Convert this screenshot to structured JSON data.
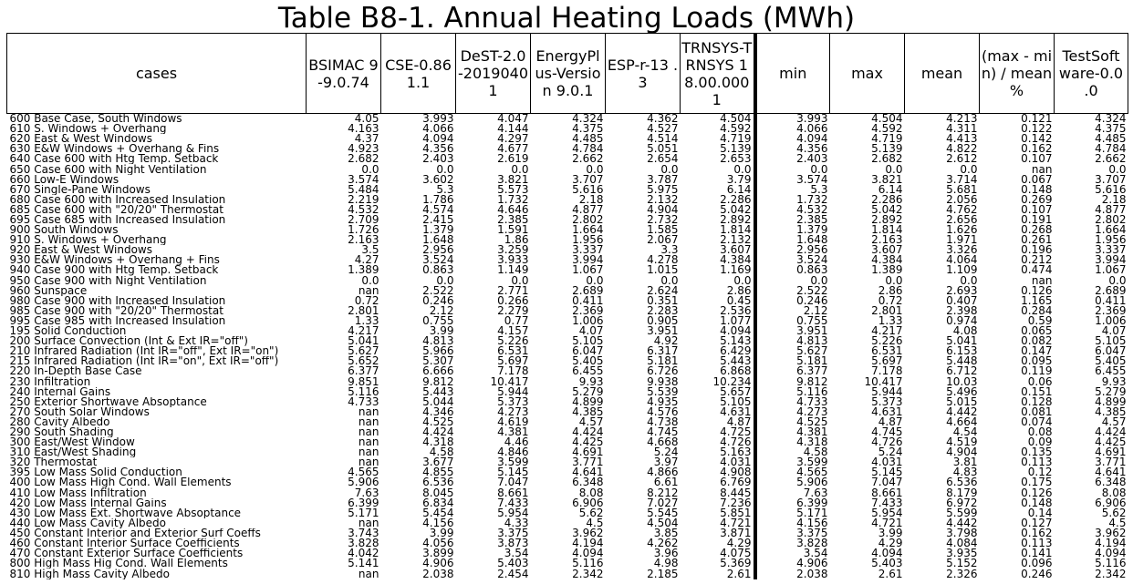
{
  "title": "Table B8-1. Annual Heating Loads (MWh)",
  "columns": [
    {
      "key": "cases",
      "label": "cases"
    },
    {
      "key": "bsimac",
      "label": "BSIMAC 9-9.0.74"
    },
    {
      "key": "cse",
      "label": "CSE-0.86 1.1"
    },
    {
      "key": "dest",
      "label": "DeST-2.0 -2019040 1"
    },
    {
      "key": "energyplus",
      "label": "EnergyPl us-Version 9.0.1"
    },
    {
      "key": "espr",
      "label": "ESP-r-13 .3"
    },
    {
      "key": "trnsys",
      "label": "TRNSYS-TRNSYS 1 8.00.000 1"
    },
    {
      "key": "min",
      "label": "min"
    },
    {
      "key": "max",
      "label": "max"
    },
    {
      "key": "mean",
      "label": "mean"
    },
    {
      "key": "range_pct",
      "label": "(max - min) / mean %"
    },
    {
      "key": "testsoft",
      "label": "TestSoft ware-0.0 .0"
    }
  ],
  "rows": [
    [
      "600 Base Case, South Windows",
      "4.05",
      "3.993",
      "4.047",
      "4.324",
      "4.362",
      "4.504",
      "3.993",
      "4.504",
      "4.213",
      "0.121",
      "4.324"
    ],
    [
      "610 S. Windows + Overhang",
      "4.163",
      "4.066",
      "4.144",
      "4.375",
      "4.527",
      "4.592",
      "4.066",
      "4.592",
      "4.311",
      "0.122",
      "4.375"
    ],
    [
      "620 East & West Windows",
      "4.37",
      "4.094",
      "4.297",
      "4.485",
      "4.514",
      "4.719",
      "4.094",
      "4.719",
      "4.413",
      "0.142",
      "4.485"
    ],
    [
      "630 E&W Windows + Overhang & Fins",
      "4.923",
      "4.356",
      "4.677",
      "4.784",
      "5.051",
      "5.139",
      "4.356",
      "5.139",
      "4.822",
      "0.162",
      "4.784"
    ],
    [
      "640 Case 600 with Htg Temp. Setback",
      "2.682",
      "2.403",
      "2.619",
      "2.662",
      "2.654",
      "2.653",
      "2.403",
      "2.682",
      "2.612",
      "0.107",
      "2.662"
    ],
    [
      "650 Case 600 with Night Ventilation",
      "0.0",
      "0.0",
      "0.0",
      "0.0",
      "0.0",
      "0.0",
      "0.0",
      "0.0",
      "0.0",
      "nan",
      "0.0"
    ],
    [
      "660 Low-E Windows",
      "3.574",
      "3.602",
      "3.821",
      "3.707",
      "3.787",
      "3.79",
      "3.574",
      "3.821",
      "3.714",
      "0.067",
      "3.707"
    ],
    [
      "670 Single-Pane Windows",
      "5.484",
      "5.3",
      "5.573",
      "5.616",
      "5.975",
      "6.14",
      "5.3",
      "6.14",
      "5.681",
      "0.148",
      "5.616"
    ],
    [
      "680 Case 600 with Increased Insulation",
      "2.219",
      "1.786",
      "1.732",
      "2.18",
      "2.132",
      "2.286",
      "1.732",
      "2.286",
      "2.056",
      "0.269",
      "2.18"
    ],
    [
      "685 Case 600 with \"20/20\" Thermostat",
      "4.532",
      "4.574",
      "4.646",
      "4.877",
      "4.904",
      "5.042",
      "4.532",
      "5.042",
      "4.762",
      "0.107",
      "4.877"
    ],
    [
      "695 Case 685 with Increased Insulation",
      "2.709",
      "2.415",
      "2.385",
      "2.802",
      "2.732",
      "2.892",
      "2.385",
      "2.892",
      "2.656",
      "0.191",
      "2.802"
    ],
    [
      "900 South Windows",
      "1.726",
      "1.379",
      "1.591",
      "1.664",
      "1.585",
      "1.814",
      "1.379",
      "1.814",
      "1.626",
      "0.268",
      "1.664"
    ],
    [
      "910 S. Windows + Overhang",
      "2.163",
      "1.648",
      "1.86",
      "1.956",
      "2.067",
      "2.132",
      "1.648",
      "2.163",
      "1.971",
      "0.261",
      "1.956"
    ],
    [
      "920 East & West Windows",
      "3.5",
      "2.956",
      "3.259",
      "3.337",
      "3.3",
      "3.607",
      "2.956",
      "3.607",
      "3.326",
      "0.196",
      "3.337"
    ],
    [
      "930 E&W Windows + Overhang + Fins",
      "4.27",
      "3.524",
      "3.933",
      "3.994",
      "4.278",
      "4.384",
      "3.524",
      "4.384",
      "4.064",
      "0.212",
      "3.994"
    ],
    [
      "940 Case 900 with Htg Temp. Setback",
      "1.389",
      "0.863",
      "1.149",
      "1.067",
      "1.015",
      "1.169",
      "0.863",
      "1.389",
      "1.109",
      "0.474",
      "1.067"
    ],
    [
      "950 Case 900 with Night Ventilation",
      "0.0",
      "0.0",
      "0.0",
      "0.0",
      "0.0",
      "0.0",
      "0.0",
      "0.0",
      "0.0",
      "nan",
      "0.0"
    ],
    [
      "960 Sunspace",
      "nan",
      "2.522",
      "2.771",
      "2.689",
      "2.624",
      "2.86",
      "2.522",
      "2.86",
      "2.693",
      "0.126",
      "2.689"
    ],
    [
      "980 Case 900 with Increased Insulation",
      "0.72",
      "0.246",
      "0.266",
      "0.411",
      "0.351",
      "0.45",
      "0.246",
      "0.72",
      "0.407",
      "1.165",
      "0.411"
    ],
    [
      "985 Case 900 with \"20/20\" Thermostat",
      "2.801",
      "2.12",
      "2.279",
      "2.369",
      "2.283",
      "2.536",
      "2.12",
      "2.801",
      "2.398",
      "0.284",
      "2.369"
    ],
    [
      "995 Case 985 with Increased Insulation",
      "1.33",
      "0.755",
      "0.77",
      "1.006",
      "0.905",
      "1.077",
      "0.755",
      "1.33",
      "0.974",
      "0.59",
      "1.006"
    ],
    [
      "195 Solid Conduction",
      "4.217",
      "3.99",
      "4.157",
      "4.07",
      "3.951",
      "4.094",
      "3.951",
      "4.217",
      "4.08",
      "0.065",
      "4.07"
    ],
    [
      "200 Surface Convection (Int & Ext IR=\"off\")",
      "5.041",
      "4.813",
      "5.226",
      "5.105",
      "4.92",
      "5.143",
      "4.813",
      "5.226",
      "5.041",
      "0.082",
      "5.105"
    ],
    [
      "210 Infrared Radiation (Int IR=\"off\", Ext IR=\"on\")",
      "5.627",
      "5.966",
      "6.531",
      "6.047",
      "6.317",
      "6.429",
      "5.627",
      "6.531",
      "6.153",
      "0.147",
      "6.047"
    ],
    [
      "215 Infrared Radiation (Int IR=\"on\", Ext IR=\"off\")",
      "5.652",
      "5.307",
      "5.697",
      "5.405",
      "5.181",
      "5.443",
      "5.181",
      "5.697",
      "5.448",
      "0.095",
      "5.405"
    ],
    [
      "220 In-Depth Base Case",
      "6.377",
      "6.666",
      "7.178",
      "6.455",
      "6.726",
      "6.868",
      "6.377",
      "7.178",
      "6.712",
      "0.119",
      "6.455"
    ],
    [
      "230 Infiltration",
      "9.851",
      "9.812",
      "10.417",
      "9.93",
      "9.938",
      "10.234",
      "9.812",
      "10.417",
      "10.03",
      "0.06",
      "9.93"
    ],
    [
      "240 Internal Gains",
      "5.116",
      "5.443",
      "5.944",
      "5.279",
      "5.539",
      "5.657",
      "5.116",
      "5.944",
      "5.496",
      "0.151",
      "5.279"
    ],
    [
      "250 Exterior Shortwave Absoptance",
      "4.733",
      "5.044",
      "5.373",
      "4.899",
      "4.935",
      "5.105",
      "4.733",
      "5.373",
      "5.015",
      "0.128",
      "4.899"
    ],
    [
      "270 South Solar Windows",
      "nan",
      "4.346",
      "4.273",
      "4.385",
      "4.576",
      "4.631",
      "4.273",
      "4.631",
      "4.442",
      "0.081",
      "4.385"
    ],
    [
      "280 Cavity Albedo",
      "nan",
      "4.525",
      "4.619",
      "4.57",
      "4.738",
      "4.87",
      "4.525",
      "4.87",
      "4.664",
      "0.074",
      "4.57"
    ],
    [
      "290 South Shading",
      "nan",
      "4.424",
      "4.381",
      "4.424",
      "4.745",
      "4.725",
      "4.381",
      "4.745",
      "4.54",
      "0.08",
      "4.424"
    ],
    [
      "300 East/West Window",
      "nan",
      "4.318",
      "4.46",
      "4.425",
      "4.668",
      "4.726",
      "4.318",
      "4.726",
      "4.519",
      "0.09",
      "4.425"
    ],
    [
      "310 East/West Shading",
      "nan",
      "4.58",
      "4.846",
      "4.691",
      "5.24",
      "5.163",
      "4.58",
      "5.24",
      "4.904",
      "0.135",
      "4.691"
    ],
    [
      "320 Thermostat",
      "nan",
      "3.677",
      "3.599",
      "3.771",
      "3.97",
      "4.031",
      "3.599",
      "4.031",
      "3.81",
      "0.113",
      "3.771"
    ],
    [
      "395 Low Mass Solid Conduction",
      "4.565",
      "4.855",
      "5.145",
      "4.641",
      "4.866",
      "4.908",
      "4.565",
      "5.145",
      "4.83",
      "0.12",
      "4.641"
    ],
    [
      "400 Low Mass High Cond. Wall Elements",
      "5.906",
      "6.536",
      "7.047",
      "6.348",
      "6.61",
      "6.769",
      "5.906",
      "7.047",
      "6.536",
      "0.175",
      "6.348"
    ],
    [
      "410 Low Mass Infiltration",
      "7.63",
      "8.045",
      "8.661",
      "8.08",
      "8.212",
      "8.445",
      "7.63",
      "8.661",
      "8.179",
      "0.126",
      "8.08"
    ],
    [
      "420 Low Mass Internal Gains",
      "6.399",
      "6.834",
      "7.433",
      "6.906",
      "7.027",
      "7.236",
      "6.399",
      "7.433",
      "6.972",
      "0.148",
      "6.906"
    ],
    [
      "430 Low Mass Ext. Shortwave Absoptance",
      "5.171",
      "5.454",
      "5.954",
      "5.62",
      "5.545",
      "5.851",
      "5.171",
      "5.954",
      "5.599",
      "0.14",
      "5.62"
    ],
    [
      "440 Low Mass Cavity Albedo",
      "nan",
      "4.156",
      "4.33",
      "4.5",
      "4.504",
      "4.721",
      "4.156",
      "4.721",
      "4.442",
      "0.127",
      "4.5"
    ],
    [
      "450 Constant Interior and Exterior Surf Coeffs",
      "3.743",
      "3.99",
      "3.375",
      "3.962",
      "3.85",
      "3.871",
      "3.375",
      "3.99",
      "3.798",
      "0.162",
      "3.962"
    ],
    [
      "460 Constant Interior Surface Coefficients",
      "3.828",
      "4.056",
      "3.873",
      "4.194",
      "4.262",
      "4.29",
      "3.828",
      "4.29",
      "4.084",
      "0.113",
      "4.194"
    ],
    [
      "470 Constant Exterior Surface Coefficients",
      "4.042",
      "3.899",
      "3.54",
      "4.094",
      "3.96",
      "4.075",
      "3.54",
      "4.094",
      "3.935",
      "0.141",
      "4.094"
    ],
    [
      "800 High Mass Hig Cond. Wall Elements",
      "5.141",
      "4.906",
      "5.403",
      "5.116",
      "4.98",
      "5.369",
      "4.906",
      "5.403",
      "5.152",
      "0.096",
      "5.116"
    ],
    [
      "810 High Mass Cavity Albedo",
      "nan",
      "2.038",
      "2.454",
      "2.342",
      "2.185",
      "2.61",
      "2.038",
      "2.61",
      "2.326",
      "0.246",
      "2.342"
    ]
  ]
}
